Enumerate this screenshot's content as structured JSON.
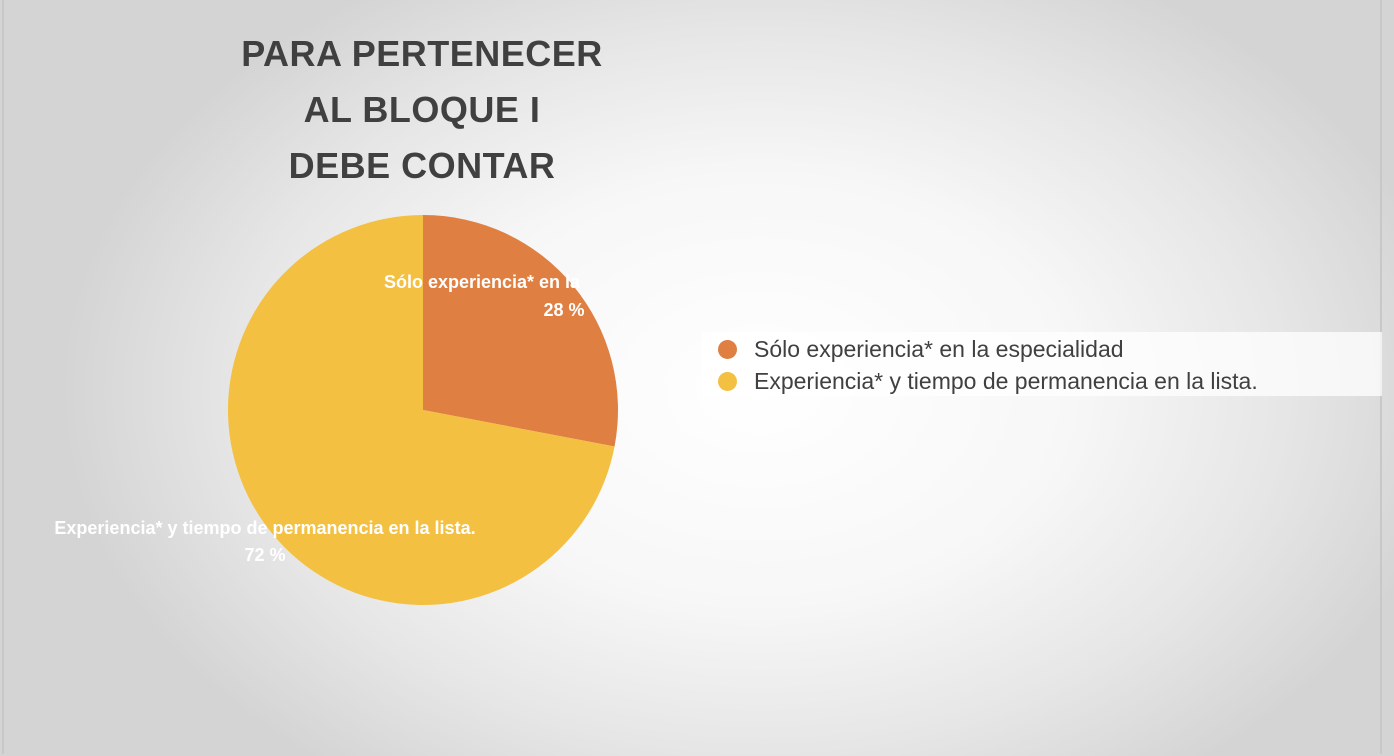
{
  "chart_data": {
    "type": "pie",
    "title_lines": [
      "PARA PERTENECER",
      "AL BLOQUE I",
      "DEBE CONTAR"
    ],
    "slices": [
      {
        "label": "Sólo experiencia* en la especialidad",
        "data_label_visible": "Sólo experiencia* en la",
        "value": 28,
        "value_label": "28 %",
        "color": "#E07F42"
      },
      {
        "label": "Experiencia*  y tiempo de permanencia en la lista.",
        "data_label_visible": "Experiencia*  y tiempo de permanencia en la lista.",
        "value": 72,
        "value_label": "72 %",
        "color": "#F4C042"
      }
    ],
    "legend_position": "right",
    "data_label_color": "#FFFFFF",
    "legend_text_color": "#404040"
  }
}
